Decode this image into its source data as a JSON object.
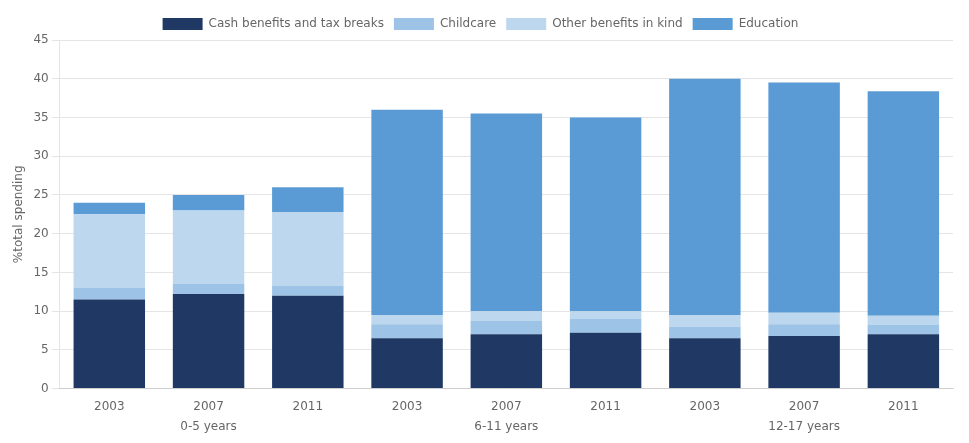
{
  "chart_data": {
    "type": "bar",
    "categories": [
      "2003",
      "2007",
      "2011",
      "2003",
      "2007",
      "2011",
      "2003",
      "2007",
      "2011"
    ],
    "groups": [
      "0-5 years",
      "6-11 years",
      "12-17 years"
    ],
    "series": [
      {
        "name": "Cash benefits and tax breaks",
        "color": "#1F3864",
        "values": [
          11.5,
          12.2,
          12.0,
          6.5,
          7.0,
          7.2,
          6.5,
          6.8,
          7.0
        ]
      },
      {
        "name": "Childcare",
        "color": "#9DC3E6",
        "values": [
          1.5,
          1.3,
          1.3,
          1.8,
          1.8,
          1.8,
          1.5,
          1.5,
          1.2
        ]
      },
      {
        "name": "Other benefits in kind",
        "color": "#BDD7EE",
        "values": [
          9.5,
          9.5,
          9.5,
          1.2,
          1.2,
          1.0,
          1.5,
          1.5,
          1.2
        ]
      },
      {
        "name": "Education",
        "color": "#5B9BD5",
        "values": [
          1.5,
          2.0,
          3.2,
          26.5,
          25.5,
          25.0,
          30.5,
          29.7,
          29.0
        ]
      }
    ],
    "ylabel": "%total spending",
    "ylim": [
      0,
      45
    ],
    "yticks": [
      0,
      5,
      10,
      15,
      20,
      25,
      30,
      35,
      40,
      45
    ],
    "stacked": true,
    "grid": true,
    "legend": "top"
  }
}
